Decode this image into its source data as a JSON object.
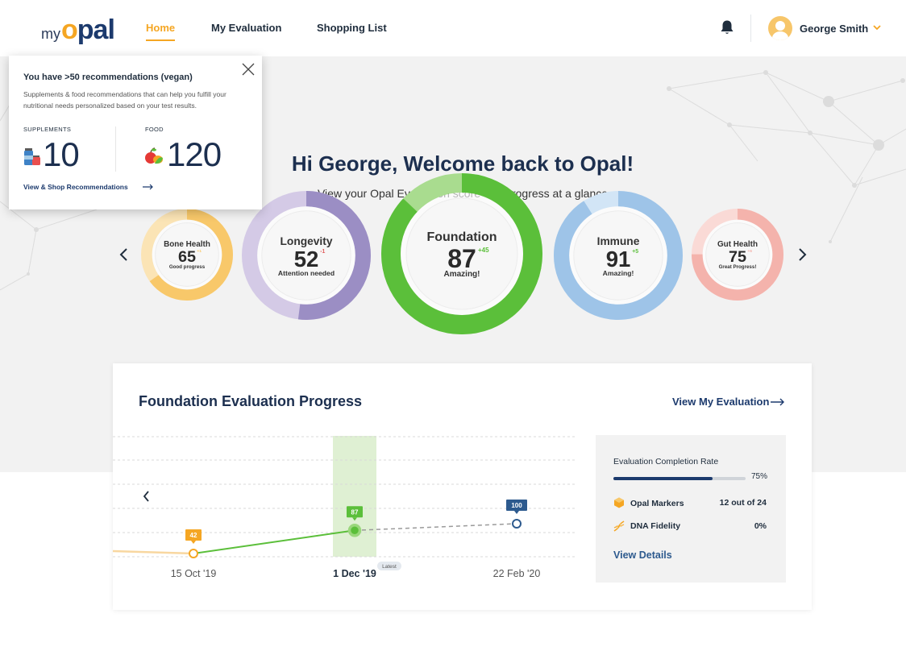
{
  "header": {
    "logo": {
      "my": "my",
      "opal_o": "o",
      "opal_rest": "pal"
    },
    "nav": [
      {
        "label": "Home",
        "active": true
      },
      {
        "label": "My Evaluation",
        "active": false
      },
      {
        "label": "Shopping List",
        "active": false
      }
    ],
    "user_name": "George Smith",
    "icons": {
      "bell": "bell-icon",
      "chevron": "chevron-down-icon",
      "avatar": "user-avatar-icon"
    }
  },
  "hero": {
    "greeting": "Hi George, Welcome back to Opal!",
    "subtitle": "View your Opal Evaluation score and progress at a glance",
    "scores": [
      {
        "label": "Bone Health",
        "score": "65",
        "delta": "+1",
        "status": "Good progress",
        "value": 65,
        "color": "#f8c86a",
        "light": "#fbe4b5",
        "delta_color": "#f8c86a"
      },
      {
        "label": "Longevity",
        "score": "52",
        "delta": "-1",
        "status": "Attention needed",
        "value": 52,
        "color": "#9b8ec4",
        "light": "#d4cae6",
        "delta_color": "#e05b5b"
      },
      {
        "label": "Foundation",
        "score": "87",
        "delta": "+45",
        "status": "Amazing!",
        "value": 87,
        "color": "#5bbf3a",
        "light": "#a9dc8f",
        "delta_color": "#5bbf3a"
      },
      {
        "label": "Immune",
        "score": "91",
        "delta": "+5",
        "status": "Amazing!",
        "value": 91,
        "color": "#9ec4e8",
        "light": "#d2e5f6",
        "delta_color": "#5bbf3a"
      },
      {
        "label": "Gut Health",
        "score": "75",
        "delta": "+6",
        "status": "Great Progress!",
        "value": 75,
        "color": "#f4b3ac",
        "light": "#fadad6",
        "delta_color": "#f4b3ac"
      }
    ],
    "prev_icon": "chevron-left-icon",
    "next_icon": "chevron-right-icon"
  },
  "popup": {
    "title": "You have >50 recommendations (vegan)",
    "description": "Supplements & food recommendations that can help you fulfill your nutritional needs personalized based on your test results.",
    "supplements_label": "SUPPLEMENTS",
    "supplements_count": "10",
    "food_label": "FOOD",
    "food_count": "120",
    "link": "View & Shop Recommendations",
    "icons": {
      "close": "close-icon",
      "supplements": "supplement-bottles-icon",
      "food": "fruit-icon",
      "arrow": "arrow-right-icon"
    }
  },
  "progress": {
    "title": "Foundation Evaluation Progress",
    "link": "View My Evaluation",
    "latest_badge": "Latest",
    "chart_data": {
      "type": "line",
      "categories": [
        "15 Oct '19",
        "1 Dec '19",
        "22 Feb '20"
      ],
      "series": [
        {
          "values": [
            42,
            87,
            100
          ]
        }
      ],
      "highlight": "1 Dec '19",
      "projected_from_index": 1
    },
    "panel": {
      "title": "Evaluation Completion Rate",
      "rate_label": "75%",
      "rate": 0.75,
      "rows": [
        {
          "label": "Opal Markers",
          "value": "12 out of 24",
          "icon": "hexagon-marker-icon"
        },
        {
          "label": "DNA Fidelity",
          "value": "0%",
          "icon": "dna-icon"
        }
      ],
      "details_link": "View Details"
    }
  }
}
